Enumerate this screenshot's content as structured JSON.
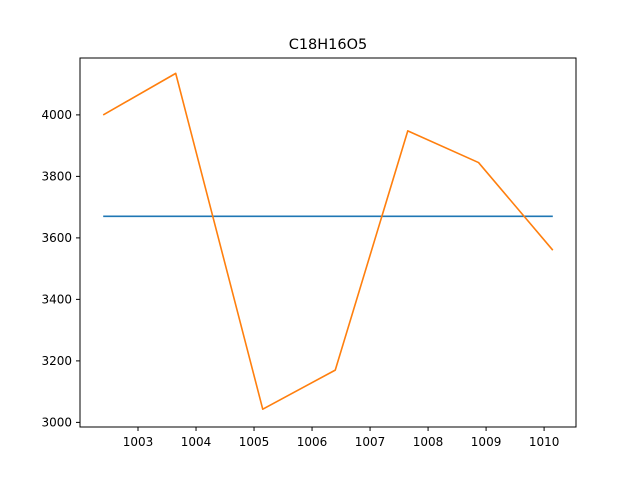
{
  "chart_data": {
    "type": "line",
    "title": "C18H16O5",
    "xlabel": "",
    "ylabel": "",
    "xlim": [
      1002.0,
      1010.55
    ],
    "ylim": [
      2985,
      4185
    ],
    "xticks": [
      1003,
      1004,
      1005,
      1006,
      1007,
      1008,
      1009,
      1010
    ],
    "yticks": [
      3000,
      3200,
      3400,
      3600,
      3800,
      4000
    ],
    "grid": false,
    "legend": "none",
    "series": [
      {
        "color": "#1f77b4",
        "x": [
          1002.4,
          1010.15
        ],
        "y": [
          3670,
          3670
        ]
      },
      {
        "color": "#ff7f0e",
        "x": [
          1002.4,
          1003.65,
          1005.15,
          1006.4,
          1007.65,
          1008.87,
          1010.15
        ],
        "y": [
          4000,
          4135,
          3043,
          3170,
          3948,
          3845,
          3560
        ]
      }
    ]
  }
}
